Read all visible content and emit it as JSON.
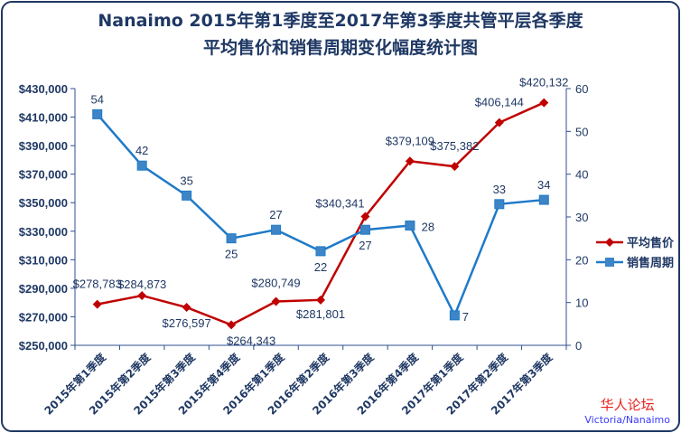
{
  "chart_data": {
    "type": "line",
    "title": [
      "Nanaimo 2015年第1季度至2017年第3季度共管平层各季度",
      "平均售价和销售周期变化幅度统计图"
    ],
    "categories": [
      "2015年第1季度",
      "2015年第2季度",
      "2015年第3季度",
      "2015年第4季度",
      "2016年第1季度",
      "2016年第2季度",
      "2016年第3季度",
      "2016年第4季度",
      "2017年第1季度",
      "2017年第2季度",
      "2017年第3季度"
    ],
    "series": [
      {
        "name": "平均售价",
        "axis": "left",
        "color": "#c00000",
        "marker": "diamond",
        "values": [
          278783,
          284873,
          276597,
          264343,
          280749,
          281801,
          340341,
          379109,
          375382,
          406144,
          420132
        ],
        "labels": [
          "$278,783",
          "$284,873",
          "$276,597",
          "$264,343",
          "$280,749",
          "$281,801",
          "$340,341",
          "$379,109",
          "$375,382",
          "$406,144",
          "$420,132"
        ]
      },
      {
        "name": "销售周期",
        "axis": "right",
        "color": "#1f7ac8",
        "marker": "square",
        "values": [
          54,
          42,
          35,
          25,
          27,
          22,
          27,
          28,
          7,
          33,
          34
        ],
        "labels": [
          "54",
          "42",
          "35",
          "25",
          "27",
          "22",
          "27",
          "28",
          "7",
          "33",
          "34"
        ]
      }
    ],
    "y_left": {
      "range": [
        250000,
        430000
      ],
      "ticks": [
        "$250,000",
        "$270,000",
        "$290,000",
        "$310,000",
        "$330,000",
        "$350,000",
        "$370,000",
        "$390,000",
        "$410,000",
        "$430,000"
      ]
    },
    "y_right": {
      "range": [
        0,
        60
      ],
      "ticks": [
        "0",
        "10",
        "20",
        "30",
        "40",
        "50",
        "60"
      ]
    },
    "grid": false,
    "legend": "right"
  },
  "watermark": {
    "cn": "华人论坛",
    "en": "Victoria/Nanaimo"
  }
}
